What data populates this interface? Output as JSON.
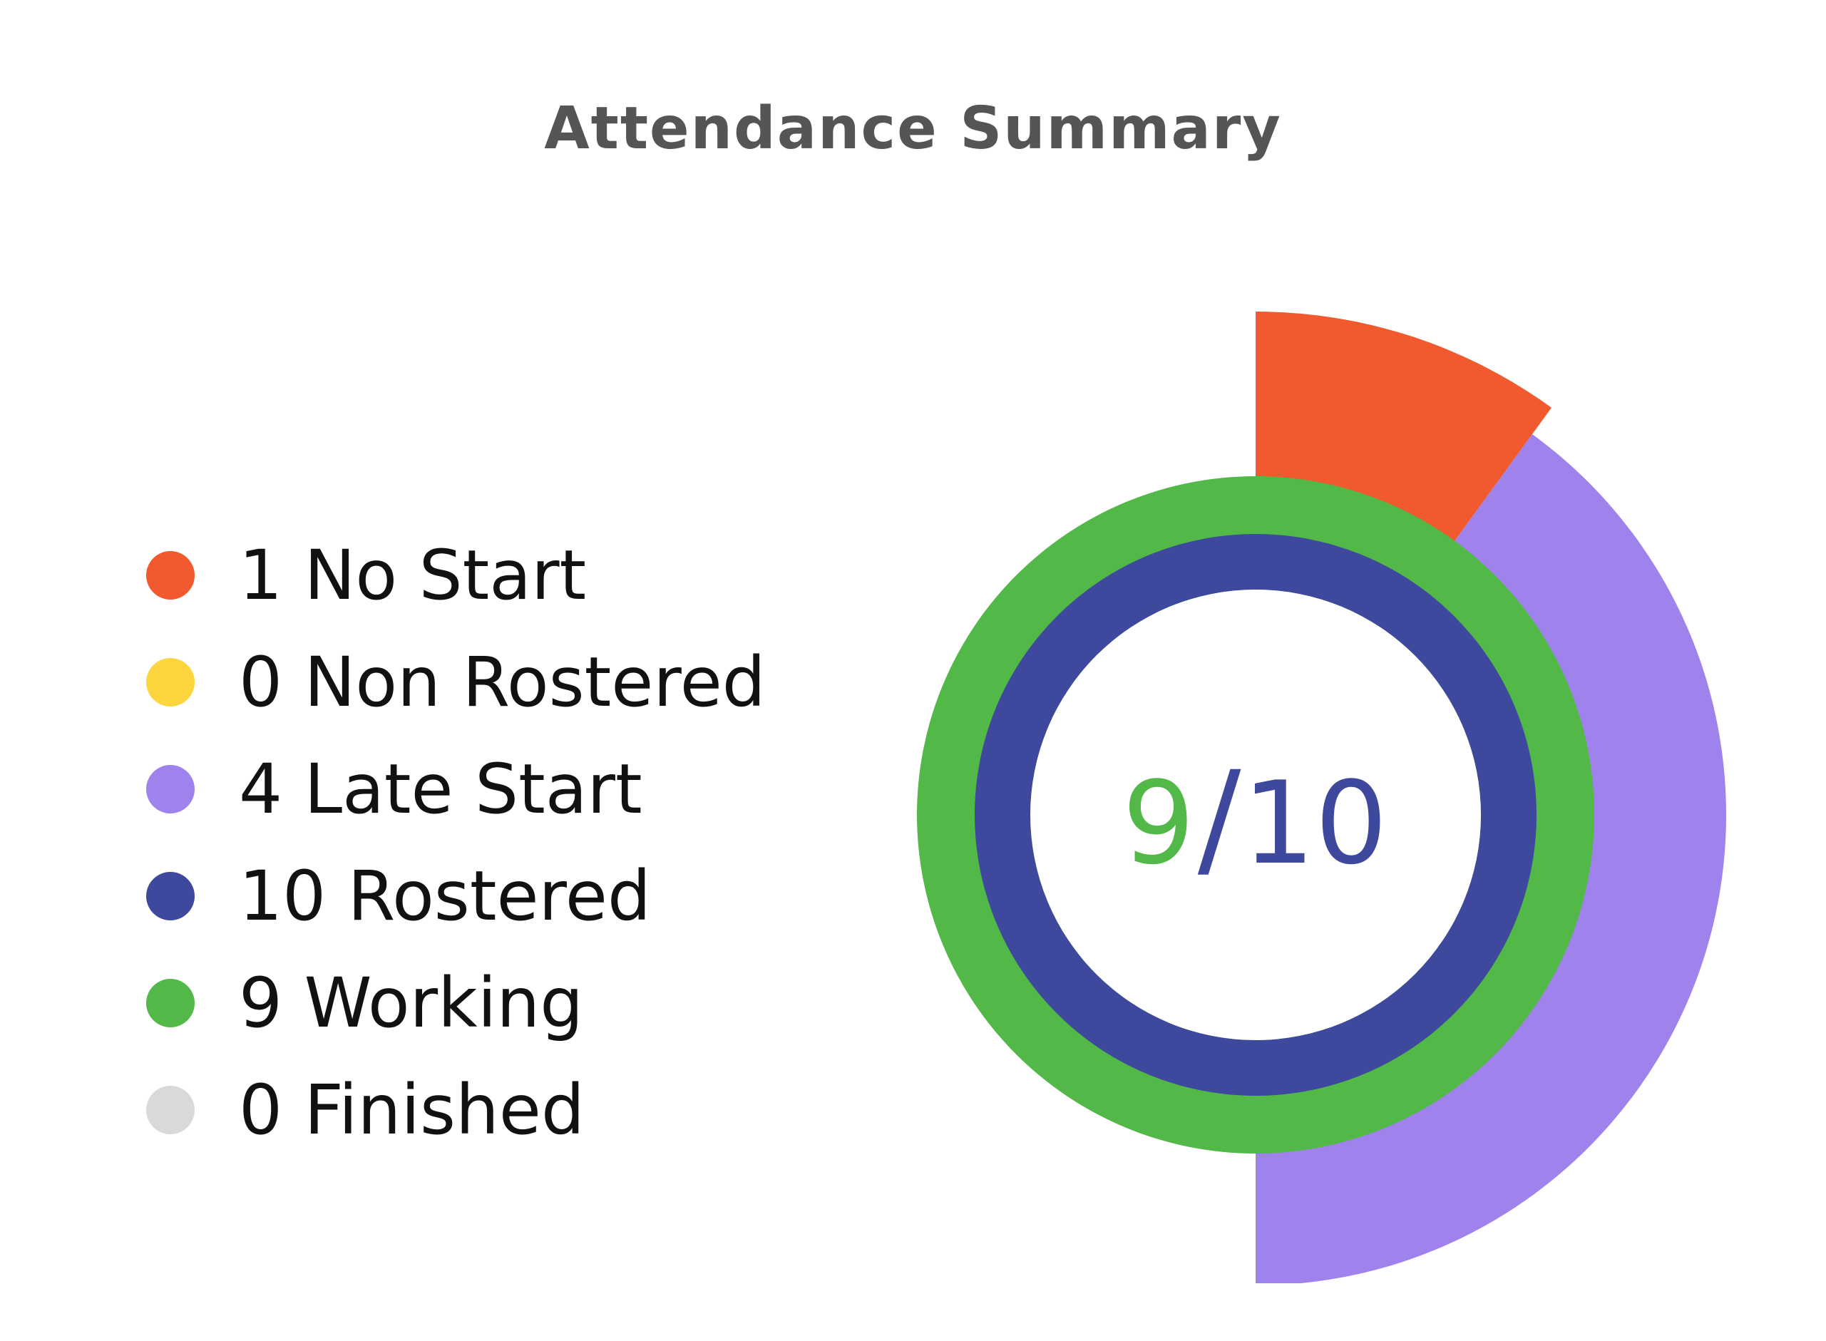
{
  "chart_data": {
    "type": "pie",
    "title": "Attendance Summary",
    "legend": [
      {
        "value": 1,
        "label": "No Start",
        "text": "1 No Start",
        "color": "#F05A2E"
      },
      {
        "value": 0,
        "label": "Non Rostered",
        "text": "0 Non Rostered",
        "color": "#FDD53E"
      },
      {
        "value": 4,
        "label": "Late Start",
        "text": "4 Late Start",
        "color": "#9F82EB"
      },
      {
        "value": 10,
        "label": "Rostered",
        "text": "10 Rostered",
        "color": "#3E489C"
      },
      {
        "value": 9,
        "label": "Working",
        "text": "9 Working",
        "color": "#52B848"
      },
      {
        "value": 0,
        "label": "Finished",
        "text": "0 Finished",
        "color": "#D9D9D9"
      }
    ],
    "rings": {
      "outer": {
        "no_start": 1,
        "late_start": 4,
        "total": 10
      },
      "middle": {
        "working": 9,
        "total": 10
      },
      "inner": {
        "rostered": 10,
        "total": 10
      }
    },
    "center": {
      "working": "9",
      "separator": "/",
      "rostered": "10"
    }
  }
}
